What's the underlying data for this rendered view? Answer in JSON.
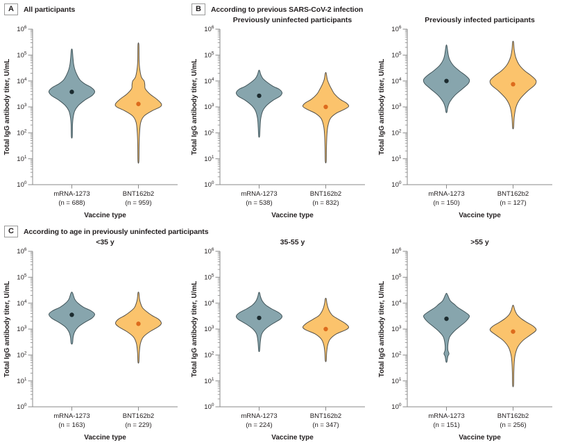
{
  "figure_name": "violin-plot-figure",
  "panels": {
    "A": {
      "letter": "A",
      "title": "All participants"
    },
    "B": {
      "letter": "B",
      "title": "According to previous SARS-CoV-2 infection"
    },
    "C": {
      "letter": "C",
      "title": "According to age in previously uninfected participants"
    }
  },
  "palette": {
    "mrna": {
      "fill": "#87A5AD",
      "stroke": "#42555A",
      "dot": "#1C2B2F"
    },
    "bnt": {
      "fill": "#FBC36C",
      "stroke": "#55514A",
      "dot": "#DD6B1D"
    },
    "axis": "#8A8A8A",
    "text": "#242021"
  },
  "axis": {
    "y_scale": "log10",
    "ylim": [
      1,
      1000000
    ],
    "y_ticks": [
      {
        "base": "10",
        "exp": "0"
      },
      {
        "base": "10",
        "exp": "1"
      },
      {
        "base": "10",
        "exp": "2"
      },
      {
        "base": "10",
        "exp": "3"
      },
      {
        "base": "10",
        "exp": "4"
      },
      {
        "base": "10",
        "exp": "5"
      },
      {
        "base": "10",
        "exp": "6"
      }
    ],
    "minor_ticks_per_decade": [
      2,
      3,
      4,
      5,
      6,
      7,
      8,
      9
    ]
  },
  "chart_data": [
    {
      "type": "violin",
      "panel": "A",
      "subtitle": "",
      "ylabel": "Total IgG antibody titer, U/mL",
      "xlabel": "Vaccine type",
      "groups": [
        {
          "label": "mRNA-1273",
          "n": 688,
          "n_label": "(n = 688)",
          "series_color": "mrna",
          "median": 3800,
          "range": [
            70,
            160000
          ],
          "profile": [
            [
              1.85,
              0.02
            ],
            [
              2.3,
              0.03
            ],
            [
              2.6,
              0.06
            ],
            [
              2.85,
              0.13
            ],
            [
              3.05,
              0.28
            ],
            [
              3.25,
              0.55
            ],
            [
              3.45,
              0.9
            ],
            [
              3.6,
              1.0
            ],
            [
              3.75,
              0.85
            ],
            [
              3.9,
              0.55
            ],
            [
              4.05,
              0.35
            ],
            [
              4.25,
              0.22
            ],
            [
              4.45,
              0.13
            ],
            [
              4.65,
              0.08
            ],
            [
              4.9,
              0.05
            ],
            [
              5.2,
              0.02
            ]
          ]
        },
        {
          "label": "BNT162b2",
          "n": 959,
          "n_label": "(n = 959)",
          "series_color": "bnt",
          "median": 1300,
          "range": [
            8,
            250000
          ],
          "profile": [
            [
              0.9,
              0.02
            ],
            [
              1.5,
              0.03
            ],
            [
              2.0,
              0.05
            ],
            [
              2.4,
              0.1
            ],
            [
              2.65,
              0.25
            ],
            [
              2.85,
              0.6
            ],
            [
              3.0,
              0.95
            ],
            [
              3.12,
              1.0
            ],
            [
              3.3,
              0.8
            ],
            [
              3.5,
              0.5
            ],
            [
              3.7,
              0.3
            ],
            [
              3.85,
              0.28
            ],
            [
              4.0,
              0.25
            ],
            [
              4.15,
              0.13
            ],
            [
              4.45,
              0.06
            ],
            [
              4.8,
              0.03
            ],
            [
              5.4,
              0.02
            ]
          ]
        }
      ]
    },
    {
      "type": "violin",
      "panel": "B",
      "subtitle": "Previously uninfected participants",
      "ylabel": "Total IgG antibody titer, U/mL",
      "xlabel": "Vaccine type",
      "groups": [
        {
          "label": "mRNA-1273",
          "n": 538,
          "n_label": "(n = 538)",
          "series_color": "mrna",
          "median": 2700,
          "range": [
            75,
            25000
          ],
          "profile": [
            [
              1.87,
              0.02
            ],
            [
              2.2,
              0.04
            ],
            [
              2.55,
              0.07
            ],
            [
              2.85,
              0.16
            ],
            [
              3.05,
              0.32
            ],
            [
              3.25,
              0.6
            ],
            [
              3.42,
              0.92
            ],
            [
              3.55,
              1.0
            ],
            [
              3.68,
              0.88
            ],
            [
              3.8,
              0.6
            ],
            [
              3.95,
              0.35
            ],
            [
              4.1,
              0.16
            ],
            [
              4.25,
              0.07
            ],
            [
              4.4,
              0.02
            ]
          ]
        },
        {
          "label": "BNT162b2",
          "n": 832,
          "n_label": "(n = 832)",
          "series_color": "bnt",
          "median": 1000,
          "range": [
            8,
            20000
          ],
          "profile": [
            [
              0.9,
              0.02
            ],
            [
              1.4,
              0.03
            ],
            [
              1.9,
              0.05
            ],
            [
              2.25,
              0.09
            ],
            [
              2.55,
              0.2
            ],
            [
              2.75,
              0.45
            ],
            [
              2.9,
              0.8
            ],
            [
              3.02,
              1.0
            ],
            [
              3.15,
              0.9
            ],
            [
              3.3,
              0.62
            ],
            [
              3.5,
              0.38
            ],
            [
              3.68,
              0.26
            ],
            [
              3.85,
              0.16
            ],
            [
              4.05,
              0.07
            ],
            [
              4.3,
              0.02
            ]
          ]
        }
      ]
    },
    {
      "type": "violin",
      "panel": "B",
      "subtitle": "Previously infected participants",
      "ylabel": "Total IgG antibody titer, U/mL",
      "xlabel": "Vaccine type",
      "groups": [
        {
          "label": "mRNA-1273",
          "n": 150,
          "n_label": "(n = 150)",
          "series_color": "mrna",
          "median": 10000,
          "range": [
            650,
            220000
          ],
          "profile": [
            [
              2.8,
              0.02
            ],
            [
              3.0,
              0.06
            ],
            [
              3.2,
              0.15
            ],
            [
              3.45,
              0.37
            ],
            [
              3.7,
              0.7
            ],
            [
              3.9,
              0.95
            ],
            [
              4.05,
              1.0
            ],
            [
              4.2,
              0.85
            ],
            [
              4.4,
              0.55
            ],
            [
              4.6,
              0.3
            ],
            [
              4.8,
              0.15
            ],
            [
              5.0,
              0.08
            ],
            [
              5.35,
              0.02
            ]
          ]
        },
        {
          "label": "BNT162b2",
          "n": 127,
          "n_label": "(n = 127)",
          "series_color": "bnt",
          "median": 7500,
          "range": [
            160,
            320000
          ],
          "profile": [
            [
              2.2,
              0.02
            ],
            [
              2.6,
              0.05
            ],
            [
              3.0,
              0.13
            ],
            [
              3.3,
              0.3
            ],
            [
              3.6,
              0.62
            ],
            [
              3.85,
              0.95
            ],
            [
              4.02,
              1.0
            ],
            [
              4.2,
              0.8
            ],
            [
              4.4,
              0.5
            ],
            [
              4.62,
              0.27
            ],
            [
              4.9,
              0.12
            ],
            [
              5.2,
              0.05
            ],
            [
              5.5,
              0.02
            ]
          ]
        }
      ]
    },
    {
      "type": "violin",
      "panel": "C",
      "subtitle": "<35 y",
      "ylabel": "Total IgG antibody titer, U/mL",
      "xlabel": "Vaccine type",
      "groups": [
        {
          "label": "mRNA-1273",
          "n": 163,
          "n_label": "(n = 163)",
          "series_color": "mrna",
          "median": 3550,
          "range": [
            280,
            25000
          ],
          "profile": [
            [
              2.45,
              0.03
            ],
            [
              2.7,
              0.06
            ],
            [
              2.9,
              0.13
            ],
            [
              3.08,
              0.28
            ],
            [
              3.25,
              0.55
            ],
            [
              3.42,
              0.88
            ],
            [
              3.57,
              1.0
            ],
            [
              3.7,
              0.85
            ],
            [
              3.85,
              0.5
            ],
            [
              4.0,
              0.27
            ],
            [
              4.15,
              0.13
            ],
            [
              4.4,
              0.03
            ]
          ]
        },
        {
          "label": "BNT162b2",
          "n": 229,
          "n_label": "(n = 229)",
          "series_color": "bnt",
          "median": 1600,
          "range": [
            55,
            25000
          ],
          "profile": [
            [
              1.73,
              0.02
            ],
            [
              2.1,
              0.04
            ],
            [
              2.45,
              0.09
            ],
            [
              2.7,
              0.22
            ],
            [
              2.9,
              0.5
            ],
            [
              3.08,
              0.85
            ],
            [
              3.22,
              1.0
            ],
            [
              3.38,
              0.88
            ],
            [
              3.52,
              0.6
            ],
            [
              3.68,
              0.35
            ],
            [
              3.82,
              0.18
            ],
            [
              3.98,
              0.1
            ],
            [
              4.15,
              0.05
            ],
            [
              4.4,
              0.02
            ]
          ]
        }
      ]
    },
    {
      "type": "violin",
      "panel": "C",
      "subtitle": "35-55 y",
      "ylabel": "Total IgG antibody titer, U/mL",
      "xlabel": "Vaccine type",
      "groups": [
        {
          "label": "mRNA-1273",
          "n": 224,
          "n_label": "(n = 224)",
          "series_color": "mrna",
          "median": 2700,
          "range": [
            150,
            25000
          ],
          "profile": [
            [
              2.17,
              0.02
            ],
            [
              2.5,
              0.05
            ],
            [
              2.8,
              0.11
            ],
            [
              3.0,
              0.27
            ],
            [
              3.2,
              0.58
            ],
            [
              3.38,
              0.92
            ],
            [
              3.5,
              1.0
            ],
            [
              3.62,
              0.88
            ],
            [
              3.78,
              0.55
            ],
            [
              3.92,
              0.3
            ],
            [
              4.08,
              0.14
            ],
            [
              4.25,
              0.06
            ],
            [
              4.4,
              0.02
            ]
          ]
        },
        {
          "label": "BNT162b2",
          "n": 347,
          "n_label": "(n = 347)",
          "series_color": "bnt",
          "median": 1000,
          "range": [
            60,
            15000
          ],
          "profile": [
            [
              1.78,
              0.02
            ],
            [
              2.1,
              0.04
            ],
            [
              2.4,
              0.09
            ],
            [
              2.62,
              0.2
            ],
            [
              2.82,
              0.48
            ],
            [
              2.97,
              0.88
            ],
            [
              3.08,
              1.0
            ],
            [
              3.22,
              0.85
            ],
            [
              3.38,
              0.55
            ],
            [
              3.52,
              0.3
            ],
            [
              3.66,
              0.18
            ],
            [
              3.82,
              0.1
            ],
            [
              4.0,
              0.05
            ],
            [
              4.17,
              0.02
            ]
          ]
        }
      ]
    },
    {
      "type": "violin",
      "panel": "C",
      "subtitle": ">55 y",
      "ylabel": "Total IgG antibody titer, U/mL",
      "xlabel": "Vaccine type",
      "groups": [
        {
          "label": "mRNA-1273",
          "n": 151,
          "n_label": "(n = 151)",
          "series_color": "mrna",
          "median": 2500,
          "range": [
            55,
            22000
          ],
          "profile": [
            [
              1.74,
              0.02
            ],
            [
              1.95,
              0.06
            ],
            [
              2.05,
              0.11
            ],
            [
              2.2,
              0.06
            ],
            [
              2.45,
              0.07
            ],
            [
              2.7,
              0.14
            ],
            [
              2.9,
              0.32
            ],
            [
              3.1,
              0.58
            ],
            [
              3.3,
              0.85
            ],
            [
              3.5,
              1.0
            ],
            [
              3.65,
              0.82
            ],
            [
              3.82,
              0.52
            ],
            [
              3.95,
              0.35
            ],
            [
              4.1,
              0.16
            ],
            [
              4.35,
              0.03
            ]
          ]
        },
        {
          "label": "BNT162b2",
          "n": 256,
          "n_label": "(n = 256)",
          "series_color": "bnt",
          "median": 800,
          "range": [
            7,
            8000
          ],
          "profile": [
            [
              0.83,
              0.02
            ],
            [
              1.3,
              0.03
            ],
            [
              1.7,
              0.05
            ],
            [
              2.0,
              0.09
            ],
            [
              2.3,
              0.2
            ],
            [
              2.55,
              0.42
            ],
            [
              2.75,
              0.72
            ],
            [
              2.95,
              1.0
            ],
            [
              3.1,
              0.9
            ],
            [
              3.25,
              0.62
            ],
            [
              3.4,
              0.36
            ],
            [
              3.55,
              0.18
            ],
            [
              3.72,
              0.08
            ],
            [
              3.9,
              0.02
            ]
          ]
        }
      ]
    }
  ]
}
